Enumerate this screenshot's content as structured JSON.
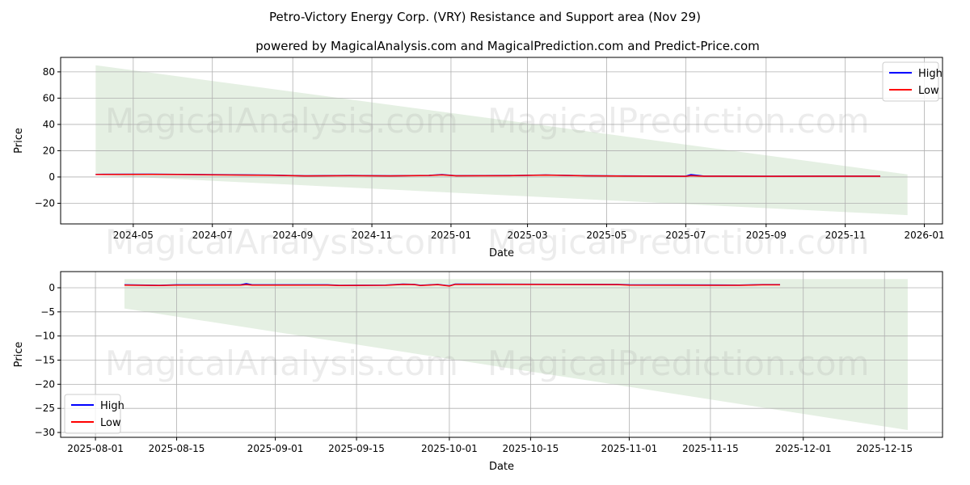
{
  "chart_data": [
    {
      "type": "line",
      "title": "Petro-Victory Energy Corp. (VRY) Resistance and Support area (Nov 29)",
      "subtitle": "powered by MagicalAnalysis.com and MagicalPrediction.com and Predict-Price.com",
      "xlabel": "Date",
      "ylabel": "Price",
      "xlim": [
        "2024-03-06",
        "2026-01-15"
      ],
      "ylim": [
        -35.7,
        91
      ],
      "xticks": [
        "2024-05",
        "2024-07",
        "2024-09",
        "2024-11",
        "2025-01",
        "2025-03",
        "2025-05",
        "2025-07",
        "2025-09",
        "2025-11",
        "2026-01"
      ],
      "xtick_dates": [
        "2024-05-01",
        "2024-07-01",
        "2024-09-01",
        "2024-11-01",
        "2025-01-01",
        "2025-03-01",
        "2025-05-01",
        "2025-07-01",
        "2025-09-01",
        "2025-11-01",
        "2026-01-01"
      ],
      "yticks": [
        80,
        60,
        40,
        20,
        0,
        -20
      ],
      "ytick_labels": [
        "80",
        "60",
        "40",
        "20",
        "0",
        "−20"
      ],
      "legend": {
        "placement": "top-right",
        "entries": [
          "High",
          "Low"
        ]
      },
      "band": {
        "x": [
          "2024-04-02",
          "2025-12-19"
        ],
        "upper": [
          85,
          2
        ],
        "lower": [
          1.5,
          -29
        ]
      },
      "x": [
        "2024-04-02",
        "2024-05-15",
        "2024-06-15",
        "2024-07-15",
        "2024-08-15",
        "2024-09-10",
        "2024-10-15",
        "2024-11-15",
        "2024-12-15",
        "2024-12-25",
        "2025-01-05",
        "2025-02-15",
        "2025-03-15",
        "2025-04-15",
        "2025-05-15",
        "2025-06-15",
        "2025-07-01",
        "2025-07-05",
        "2025-07-15",
        "2025-09-01",
        "2025-10-15",
        "2025-11-28"
      ],
      "series": [
        {
          "name": "High",
          "color": "#0000ff",
          "values": [
            2.0,
            2.1,
            1.9,
            1.7,
            1.4,
            0.9,
            1.1,
            0.9,
            1.2,
            1.8,
            1.0,
            1.1,
            1.5,
            1.0,
            0.8,
            0.7,
            0.6,
            1.8,
            0.7,
            0.6,
            0.7,
            0.65
          ]
        },
        {
          "name": "Low",
          "color": "#ff0000",
          "values": [
            1.9,
            2.0,
            1.8,
            1.5,
            1.3,
            0.8,
            1.0,
            0.8,
            1.1,
            1.6,
            0.9,
            1.0,
            1.4,
            0.9,
            0.7,
            0.6,
            0.5,
            1.0,
            0.6,
            0.5,
            0.6,
            0.6
          ]
        }
      ]
    },
    {
      "type": "line",
      "xlabel": "Date",
      "ylabel": "Price",
      "xlim": [
        "2025-07-26",
        "2025-12-25"
      ],
      "ylim": [
        -31,
        3.35
      ],
      "xticks": [
        "2025-08-01",
        "2025-08-15",
        "2025-09-01",
        "2025-09-15",
        "2025-10-01",
        "2025-10-15",
        "2025-11-01",
        "2025-11-15",
        "2025-12-01",
        "2025-12-15"
      ],
      "xtick_dates": [
        "2025-08-01",
        "2025-08-15",
        "2025-09-01",
        "2025-09-15",
        "2025-10-01",
        "2025-10-15",
        "2025-11-01",
        "2025-11-15",
        "2025-12-01",
        "2025-12-15"
      ],
      "yticks": [
        0,
        -5,
        -10,
        -15,
        -20,
        -25,
        -30
      ],
      "ytick_labels": [
        "0",
        "−5",
        "−10",
        "−15",
        "−20",
        "−25",
        "−30"
      ],
      "legend": {
        "placement": "bottom-left",
        "entries": [
          "High",
          "Low"
        ]
      },
      "band": {
        "x": [
          "2025-08-06",
          "2025-12-19"
        ],
        "upper": [
          1.8,
          1.8
        ],
        "lower": [
          -4.3,
          -29.5
        ]
      },
      "x": [
        "2025-08-06",
        "2025-08-12",
        "2025-08-15",
        "2025-08-26",
        "2025-08-27",
        "2025-08-28",
        "2025-09-10",
        "2025-09-12",
        "2025-09-20",
        "2025-09-23",
        "2025-09-25",
        "2025-09-26",
        "2025-09-29",
        "2025-10-01",
        "2025-10-02",
        "2025-10-30",
        "2025-11-01",
        "2025-11-20",
        "2025-11-24",
        "2025-11-27"
      ],
      "series": [
        {
          "name": "High",
          "color": "#0000ff",
          "values": [
            0.6,
            0.5,
            0.6,
            0.6,
            0.85,
            0.6,
            0.6,
            0.5,
            0.55,
            0.75,
            0.7,
            0.5,
            0.7,
            0.4,
            0.75,
            0.7,
            0.6,
            0.55,
            0.65,
            0.65
          ]
        },
        {
          "name": "Low",
          "color": "#ff0000",
          "values": [
            0.55,
            0.45,
            0.55,
            0.55,
            0.65,
            0.55,
            0.55,
            0.45,
            0.5,
            0.7,
            0.65,
            0.45,
            0.65,
            0.35,
            0.7,
            0.65,
            0.55,
            0.5,
            0.6,
            0.6
          ]
        }
      ]
    }
  ],
  "watermarks": [
    "MagicalAnalysis.com",
    "MagicalPrediction.com"
  ]
}
